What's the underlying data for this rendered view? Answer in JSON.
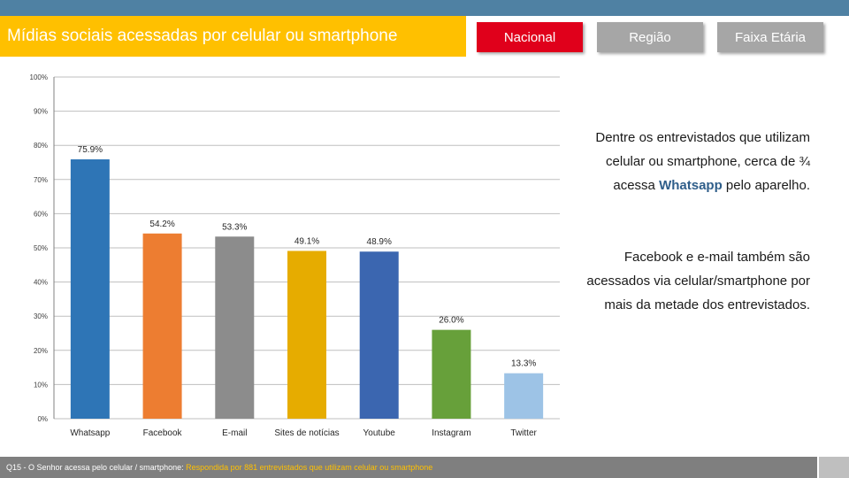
{
  "header": {
    "title": "Mídias sociais acessadas por celular ou smartphone",
    "tabs": [
      {
        "label": "Nacional",
        "active": true,
        "color": "#e0001b"
      },
      {
        "label": "Região",
        "active": false,
        "color": "#a6a6a6"
      },
      {
        "label": "Faixa Etária",
        "active": false,
        "color": "#a6a6a6"
      }
    ]
  },
  "chart_data": {
    "type": "bar",
    "categories": [
      "Whatsapp",
      "Facebook",
      "E-mail",
      "Sites de notícias",
      "Youtube",
      "Instagram",
      "Twitter"
    ],
    "values": [
      75.9,
      54.2,
      53.3,
      49.1,
      48.9,
      26.0,
      13.3
    ],
    "value_labels": [
      "75.9%",
      "54.2%",
      "53.3%",
      "49.1%",
      "48.9%",
      "26.0%",
      "13.3%"
    ],
    "colors": [
      "#2e75b6",
      "#ed7d31",
      "#8c8c8c",
      "#e6ac00",
      "#3b66b0",
      "#67a03a",
      "#9dc3e6"
    ],
    "yticks": [
      0,
      10,
      20,
      30,
      40,
      50,
      60,
      70,
      80,
      90,
      100
    ],
    "ytick_labels": [
      "0%",
      "10%",
      "20%",
      "30%",
      "40%",
      "50%",
      "60%",
      "70%",
      "80%",
      "90%",
      "100%"
    ],
    "ylim": [
      0,
      100
    ],
    "grid": true,
    "legend": "none",
    "title": "",
    "xlabel": "",
    "ylabel": ""
  },
  "commentary": {
    "p1_before": "Dentre os entrevistados que utilizam celular ou smartphone, cerca de ¾ acessa ",
    "p1_highlight": "Whatsapp",
    "p1_after": " pelo aparelho.",
    "p2": "Facebook e e-mail também são acessados via celular/smartphone por mais da metade dos entrevistados."
  },
  "footer": {
    "question": "Q15 - O Senhor acessa pelo celular / smartphone:",
    "base": " Respondida por 881 entrevistados que utilizam celular ou smartphone"
  }
}
